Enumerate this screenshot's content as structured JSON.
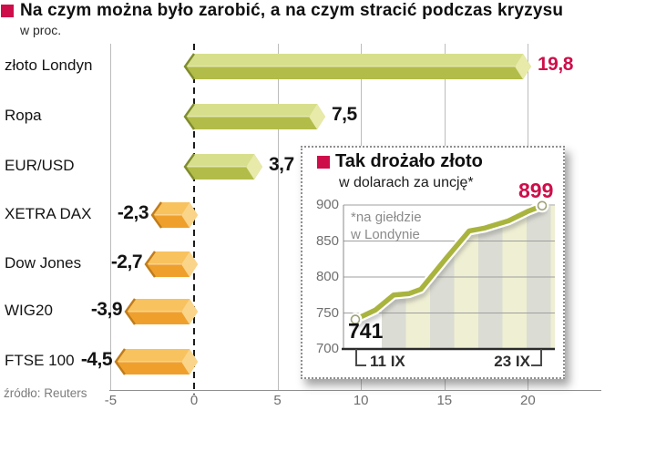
{
  "header": {
    "title": "Na czym można było zarobić, a na czym stracić podczas kryzysu",
    "subtitle": "w proc."
  },
  "source": "źródło: Reuters",
  "colors": {
    "accent_red": "#ce0e4a",
    "bar_positive_body": "#b2bc48",
    "bar_positive_top": "#d8df8c",
    "bar_positive_cap": "#e7eaa9",
    "bar_positive_edge": "#7f8c2c",
    "bar_negative_body": "#efa02c",
    "bar_negative_top": "#f8c25e",
    "bar_negative_cap": "#fad489",
    "bar_negative_edge": "#c07c1a",
    "line_green": "#a9b43e",
    "stripe_gray": "#dbdcd3",
    "stripe_yellow": "#efefd3"
  },
  "chart_data": [
    {
      "type": "bar",
      "orientation": "horizontal",
      "title": "Na czym można było zarobić, a na czym stracić podczas kryzysu",
      "unit_label": "w proc.",
      "categories": [
        "złoto Londyn",
        "Ropa",
        "EUR/USD",
        "XETRA DAX",
        "Dow Jones",
        "WIG20",
        "FTSE 100"
      ],
      "values": [
        19.8,
        7.5,
        3.7,
        -2.3,
        -2.7,
        -3.9,
        -4.5
      ],
      "value_labels": [
        "19,8",
        "7,5",
        "3,7",
        "-2,3",
        "-2,7",
        "-3,9",
        "-4,5"
      ],
      "highlight_value_index": 0,
      "x_ticks": [
        -5,
        0,
        5,
        10,
        15,
        20
      ],
      "xlim": [
        -5,
        22
      ],
      "grid": true,
      "source": "źródło: Reuters"
    },
    {
      "type": "line",
      "title": "Tak drożało złoto",
      "subtitle": "w dolarach za uncję*",
      "footnote": "*na giełdzie w Londynie",
      "footnote_lines": [
        "*na giełdzie",
        "w Londynie"
      ],
      "x_range_labels": [
        "11 IX",
        "23 IX"
      ],
      "y_ticks": [
        "900",
        "850",
        "800",
        "750",
        "700"
      ],
      "ylim": [
        700,
        900
      ],
      "values": [
        741,
        754,
        775,
        777,
        783,
        825,
        864,
        868,
        878,
        891,
        899
      ],
      "start_label": "741",
      "end_label": "899",
      "grid": true
    }
  ]
}
